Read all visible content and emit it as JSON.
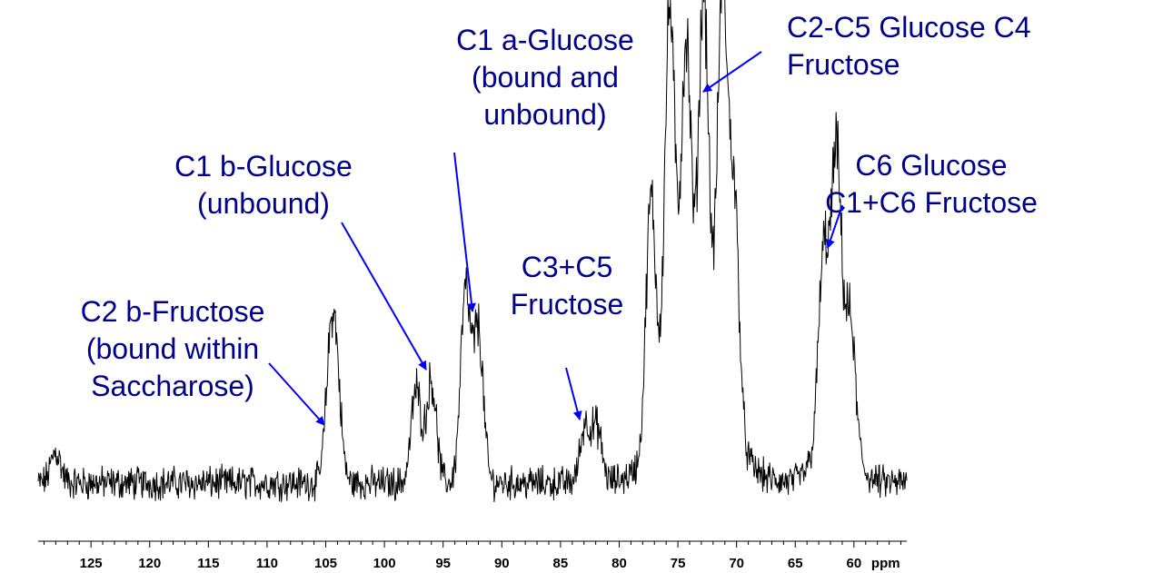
{
  "chart_data": {
    "type": "line",
    "title": "",
    "xlabel": "ppm",
    "ylabel": "",
    "x_reversed": true,
    "xlim": [
      129.5,
      55.5
    ],
    "ylim": [
      0,
      1
    ],
    "grid": false,
    "legend": "none",
    "tick_labels": [
      "125",
      "120",
      "115",
      "110",
      "105",
      "100",
      "95",
      "90",
      "85",
      "80",
      "75",
      "70",
      "65",
      "60"
    ],
    "tick_values": [
      125,
      120,
      115,
      110,
      105,
      100,
      95,
      90,
      85,
      80,
      75,
      70,
      65,
      60
    ],
    "minor_tick_step": 1,
    "series": [
      {
        "color": "#000000",
        "peaks": [
          {
            "x": 128.0,
            "height": 0.07
          },
          {
            "x": 104.6,
            "height": 0.25
          },
          {
            "x": 104.1,
            "height": 0.21
          },
          {
            "x": 97.3,
            "height": 0.21
          },
          {
            "x": 96.0,
            "height": 0.23
          },
          {
            "x": 93.1,
            "height": 0.42
          },
          {
            "x": 92.0,
            "height": 0.34
          },
          {
            "x": 82.9,
            "height": 0.13
          },
          {
            "x": 81.9,
            "height": 0.12
          },
          {
            "x": 77.3,
            "height": 0.55
          },
          {
            "x": 75.7,
            "height": 0.87
          },
          {
            "x": 74.3,
            "height": 0.71
          },
          {
            "x": 72.8,
            "height": 0.82
          },
          {
            "x": 71.2,
            "height": 0.92
          },
          {
            "x": 70.2,
            "height": 0.52
          },
          {
            "x": 62.6,
            "height": 0.38
          },
          {
            "x": 61.5,
            "height": 0.56
          },
          {
            "x": 60.3,
            "height": 0.26
          }
        ]
      }
    ],
    "annotations": [
      {
        "lines": [
          "C2 b-Fructose",
          "(bound within",
          "Saccharose)"
        ],
        "x": 104.6,
        "color": "#00008b"
      },
      {
        "lines": [
          "C1 b-Glucose",
          "(unbound)"
        ],
        "x": 96.4,
        "color": "#00008b"
      },
      {
        "lines": [
          "C1 a-Glucose",
          "(bound and",
          "unbound)"
        ],
        "x": 93.0,
        "color": "#00008b"
      },
      {
        "lines": [
          "C3+C5",
          "Fructose"
        ],
        "x": 82.7,
        "color": "#00008b"
      },
      {
        "lines": [
          "C2-C5 Glucose C4",
          "Fructose"
        ],
        "x": 72.6,
        "color": "#00008b"
      },
      {
        "lines": [
          "C6 Glucose",
          "C1+C6 Fructose"
        ],
        "x": 61.0,
        "color": "#00008b"
      }
    ],
    "arrow_color": "#0000ff"
  }
}
